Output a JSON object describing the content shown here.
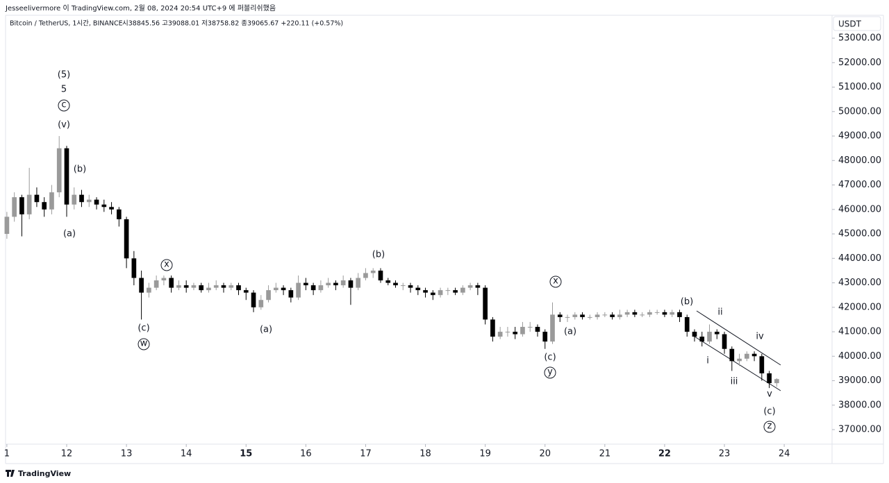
{
  "header": {
    "publisher": "Jesseelivermore 이 TradingView.com, 2월 08, 2024 20:54 UTC+9 에 퍼블리쉬했음",
    "symbol": "Bitcoin / TetherUS, 1시간, BINANCE",
    "ohlc": "시38845.56  고39088.01  저38758.82  종39065.67  +220.11 (+0.57%)"
  },
  "footer": "TradingView",
  "chart_data": {
    "type": "candlestick",
    "y_axis_label": "USDT",
    "x": [
      11,
      11.125,
      11.25,
      11.375,
      11.5,
      11.625,
      11.75,
      11.875,
      12,
      12.125,
      12.25,
      12.375,
      12.5,
      12.625,
      12.75,
      12.875,
      13,
      13.125,
      13.25,
      13.375,
      13.5,
      13.625,
      13.75,
      13.875,
      14,
      14.125,
      14.25,
      14.375,
      14.5,
      14.625,
      14.75,
      14.875,
      15,
      15.125,
      15.25,
      15.375,
      15.5,
      15.625,
      15.75,
      15.875,
      16,
      16.125,
      16.25,
      16.375,
      16.5,
      16.625,
      16.75,
      16.875,
      17,
      17.125,
      17.25,
      17.375,
      17.5,
      17.625,
      17.75,
      17.875,
      18,
      18.125,
      18.25,
      18.375,
      18.5,
      18.625,
      18.75,
      18.875,
      19,
      19.125,
      19.25,
      19.375,
      19.5,
      19.625,
      19.75,
      19.875,
      20,
      20.125,
      20.25,
      20.375,
      20.5,
      20.625,
      20.75,
      20.875,
      21,
      21.125,
      21.25,
      21.375,
      21.5,
      21.625,
      21.75,
      21.875,
      22,
      22.125,
      22.25,
      22.375,
      22.5,
      22.625,
      22.75,
      22.875,
      23,
      23.125,
      23.25,
      23.375,
      23.5,
      23.625,
      23.75,
      23.875
    ],
    "open": [
      45000,
      45700,
      46500,
      45800,
      46600,
      46300,
      46000,
      46700,
      48500,
      46200,
      46600,
      46300,
      46400,
      46200,
      46100,
      46000,
      45600,
      44000,
      43200,
      42600,
      42800,
      43100,
      43200,
      42800,
      42900,
      42800,
      42900,
      42700,
      42800,
      42900,
      42800,
      42900,
      42700,
      42600,
      42000,
      42300,
      42700,
      42800,
      42700,
      42400,
      43000,
      42900,
      42700,
      42900,
      43000,
      42900,
      43100,
      42800,
      43200,
      43400,
      43500,
      43100,
      43000,
      42900,
      42900,
      42800,
      42700,
      42600,
      42500,
      42700,
      42700,
      42600,
      42800,
      42900,
      42800,
      41500,
      40800,
      41000,
      41000,
      40900,
      41200,
      41200,
      41000,
      40600,
      41700,
      41600,
      41600,
      41700,
      41600,
      41600,
      41700,
      41700,
      41600,
      41700,
      41800,
      41700,
      41700,
      41800,
      41800,
      41700,
      41800,
      41600,
      41000,
      40800,
      40600,
      41000,
      40900,
      40300,
      39800,
      39900,
      40100,
      40000,
      39300,
      38900
    ],
    "high": [
      45900,
      46700,
      46600,
      47700,
      46900,
      46500,
      47000,
      49000,
      48600,
      46900,
      46800,
      46600,
      46500,
      46400,
      46300,
      46100,
      45700,
      44300,
      43500,
      43000,
      43300,
      43300,
      43300,
      43100,
      43100,
      43000,
      43000,
      43000,
      43100,
      43000,
      43000,
      43000,
      42800,
      42700,
      42500,
      42900,
      43000,
      42900,
      42800,
      43300,
      43200,
      43000,
      43100,
      43200,
      43100,
      43300,
      43200,
      43400,
      43600,
      43600,
      43600,
      43200,
      43100,
      43000,
      43000,
      42900,
      42800,
      42700,
      42800,
      42800,
      42800,
      42900,
      43000,
      43000,
      42900,
      41600,
      41200,
      41200,
      41200,
      41400,
      41400,
      41300,
      41100,
      42200,
      41800,
      41700,
      41800,
      41800,
      41700,
      41800,
      41800,
      41800,
      41900,
      41900,
      41900,
      41800,
      41900,
      41900,
      41900,
      41900,
      41900,
      41700,
      41100,
      41000,
      41300,
      41100,
      41000,
      40400,
      40100,
      40200,
      40200,
      40100,
      39400,
      39100
    ],
    "low": [
      44800,
      45500,
      44900,
      45600,
      46100,
      45700,
      45800,
      46500,
      45700,
      46000,
      46100,
      46100,
      46000,
      45900,
      45800,
      45300,
      43600,
      42900,
      41500,
      42400,
      42700,
      42900,
      42600,
      42700,
      42600,
      42700,
      42600,
      42600,
      42700,
      42600,
      42700,
      42500,
      42300,
      41800,
      41900,
      42200,
      42600,
      42500,
      42200,
      42300,
      42700,
      42500,
      42600,
      42800,
      42700,
      42800,
      42100,
      42700,
      43100,
      43200,
      43000,
      42900,
      42800,
      42700,
      42600,
      42500,
      42400,
      42300,
      42400,
      42500,
      42500,
      42500,
      42700,
      42500,
      41300,
      40600,
      40700,
      40800,
      40700,
      40800,
      41000,
      40800,
      40300,
      40500,
      41400,
      41400,
      41500,
      41500,
      41500,
      41500,
      41600,
      41500,
      41500,
      41600,
      41600,
      41600,
      41600,
      41700,
      41600,
      41600,
      41400,
      40800,
      40600,
      40400,
      40500,
      40700,
      40100,
      39400,
      39600,
      39800,
      39800,
      39000,
      38700,
      38750
    ],
    "close": [
      45700,
      46500,
      45800,
      46600,
      46300,
      46000,
      46700,
      48500,
      46200,
      46600,
      46300,
      46400,
      46200,
      46100,
      46000,
      45600,
      44000,
      43200,
      42600,
      42800,
      43100,
      43200,
      42800,
      42900,
      42800,
      42900,
      42700,
      42800,
      42900,
      42800,
      42900,
      42700,
      42600,
      42000,
      42300,
      42700,
      42800,
      42700,
      42400,
      43000,
      42900,
      42700,
      42900,
      43000,
      42900,
      43100,
      42800,
      43200,
      43400,
      43500,
      43100,
      43000,
      42900,
      42900,
      42800,
      42700,
      42600,
      42500,
      42700,
      42700,
      42600,
      42800,
      42900,
      42800,
      41500,
      40800,
      41000,
      41000,
      40900,
      41200,
      41200,
      41000,
      40600,
      41700,
      41600,
      41600,
      41700,
      41600,
      41600,
      41700,
      41700,
      41600,
      41700,
      41800,
      41700,
      41700,
      41800,
      41800,
      41700,
      41800,
      41600,
      41000,
      40800,
      40600,
      41000,
      40900,
      40300,
      39800,
      39900,
      40100,
      40000,
      39300,
      38900,
      39065.67
    ],
    "up_color": "#9a9a9a",
    "down_color": "#000000",
    "xlim": [
      10.978,
      24.8
    ],
    "xticks": [
      {
        "value": 11,
        "label": "1"
      },
      12,
      13,
      14,
      15,
      16,
      17,
      18,
      19,
      20,
      21,
      22,
      23,
      24
    ],
    "bold_xticks": [
      15,
      22
    ],
    "ylim": [
      36520,
      53880
    ],
    "yticks": [
      {
        "value": 37000,
        "label": "37000.00"
      },
      {
        "value": 38000,
        "label": "38000.00"
      },
      {
        "value": 39000,
        "label": "39000.00"
      },
      {
        "value": 40000,
        "label": "40000.00"
      },
      {
        "value": 41000,
        "label": "41000.00"
      },
      {
        "value": 42000,
        "label": "42000.00"
      },
      {
        "value": 43000,
        "label": "43000.00"
      },
      {
        "value": 44000,
        "label": "44000.00"
      },
      {
        "value": 45000,
        "label": "45000.00"
      },
      {
        "value": 46000,
        "label": "46000.00"
      },
      {
        "value": 47000,
        "label": "47000.00"
      },
      {
        "value": 48000,
        "label": "48000.00"
      },
      {
        "value": 49000,
        "label": "49000.00"
      },
      {
        "value": 50000,
        "label": "50000.00"
      },
      {
        "value": 51000,
        "label": "51000.00"
      },
      {
        "value": 52000,
        "label": "52000.00"
      },
      {
        "value": 53000,
        "label": "53000.00"
      }
    ],
    "annotations": [
      "(5)",
      "5",
      "c",
      "(v)",
      "(b)",
      "(a)",
      "x",
      "(c)",
      "w",
      "(a)",
      "(b)",
      "x",
      "(a)",
      "(c)",
      "y",
      "(b)",
      "ii",
      "iv",
      "i",
      "iii",
      "v",
      "(c)",
      "z"
    ]
  }
}
